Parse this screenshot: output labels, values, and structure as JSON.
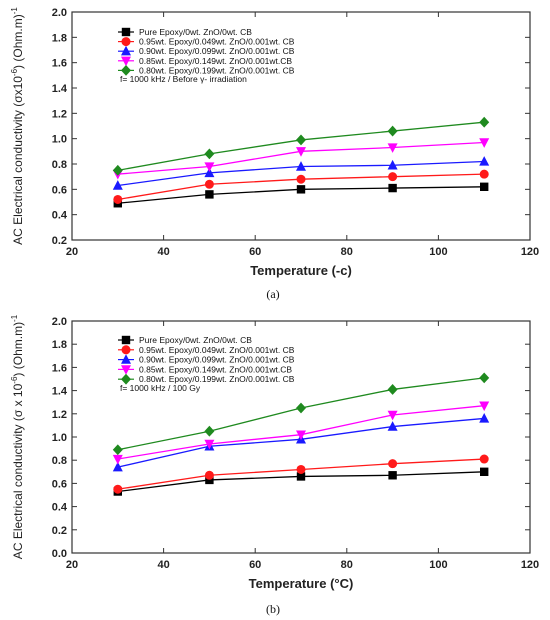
{
  "chart_data": [
    {
      "type": "line",
      "panel_label": "(a)",
      "xlabel": "Temperature (-c)",
      "ylabel": "AC Electrical conductivity (σx10",
      "ylabel_sup": "-6",
      "ylabel_tail": ") (Ohm.m)",
      "ylabel_tail_sup": "-1",
      "xlim": [
        20,
        120
      ],
      "ylim": [
        0.2,
        2.0
      ],
      "xticks": [
        "20",
        "40",
        "60",
        "80",
        "100",
        "120"
      ],
      "yticks": [
        "0.2",
        "0.4",
        "0.6",
        "0.8",
        "1.0",
        "1.2",
        "1.4",
        "1.6",
        "1.8",
        "2.0"
      ],
      "x": [
        30,
        50,
        70,
        90,
        110
      ],
      "legend_note": "f= 1000 kHz  / Before γ- irradiation",
      "series": [
        {
          "name": "Pure Epoxy/0wt. ZnO/0wt. CB",
          "color": "#000000",
          "marker": "square",
          "values": [
            0.49,
            0.56,
            0.6,
            0.61,
            0.62
          ]
        },
        {
          "name": "0.95wt. Epoxy/0.049wt. ZnO/0.001wt. CB",
          "color": "#ff1a1a",
          "marker": "circle",
          "values": [
            0.52,
            0.64,
            0.68,
            0.7,
            0.72
          ]
        },
        {
          "name": "0.90wt. Epoxy/0.099wt. ZnO/0.001wt. CB",
          "color": "#1a1aff",
          "marker": "triangle-up",
          "values": [
            0.63,
            0.73,
            0.78,
            0.79,
            0.82
          ]
        },
        {
          "name": "0.85wt. Epoxy/0.149wt. ZnO/0.001wt.CB",
          "color": "#ff00ff",
          "marker": "triangle-down",
          "values": [
            0.72,
            0.78,
            0.9,
            0.93,
            0.97
          ]
        },
        {
          "name": "0.80wt. Epoxy/0.199wt. ZnO/0.001wt. CB",
          "color": "#1f8a1f",
          "marker": "diamond",
          "values": [
            0.75,
            0.88,
            0.99,
            1.06,
            1.13
          ]
        }
      ]
    },
    {
      "type": "line",
      "panel_label": "(b)",
      "xlabel": "Temperature (°C)",
      "ylabel": "AC Electrical conductivity (σ x 10",
      "ylabel_sup": "-6",
      "ylabel_tail": ") (Ohm.m)",
      "ylabel_tail_sup": "-1",
      "xlim": [
        20,
        120
      ],
      "ylim": [
        0.0,
        2.0
      ],
      "xticks": [
        "20",
        "40",
        "60",
        "80",
        "100",
        "120"
      ],
      "yticks": [
        "0.0",
        "0.2",
        "0.4",
        "0.6",
        "0.8",
        "1.0",
        "1.2",
        "1.4",
        "1.6",
        "1.8",
        "2.0"
      ],
      "x": [
        30,
        50,
        70,
        90,
        110
      ],
      "legend_note": "f= 1000 kHz / 100 Gy",
      "series": [
        {
          "name": "Pure Epoxy/0wt. ZnO/0wt. CB",
          "color": "#000000",
          "marker": "square",
          "values": [
            0.53,
            0.63,
            0.66,
            0.67,
            0.7
          ]
        },
        {
          "name": "0.95wt. Epoxy/0.049wt. ZnO/0.001wt. CB",
          "color": "#ff1a1a",
          "marker": "circle",
          "values": [
            0.55,
            0.67,
            0.72,
            0.77,
            0.81
          ]
        },
        {
          "name": "0.90wt. Epoxy/0.099wt. ZnO/0.001wt. CB",
          "color": "#1a1aff",
          "marker": "triangle-up",
          "values": [
            0.74,
            0.92,
            0.98,
            1.09,
            1.16
          ]
        },
        {
          "name": "0.85wt. Epoxy/0.149wt. ZnO/0.001wt.CB",
          "color": "#ff00ff",
          "marker": "triangle-down",
          "values": [
            0.81,
            0.94,
            1.02,
            1.19,
            1.27
          ]
        },
        {
          "name": "0.80wt. Epoxy/0.199wt. ZnO/0.001wt. CB",
          "color": "#1f8a1f",
          "marker": "diamond",
          "values": [
            0.89,
            1.05,
            1.25,
            1.41,
            1.51
          ]
        }
      ]
    }
  ]
}
